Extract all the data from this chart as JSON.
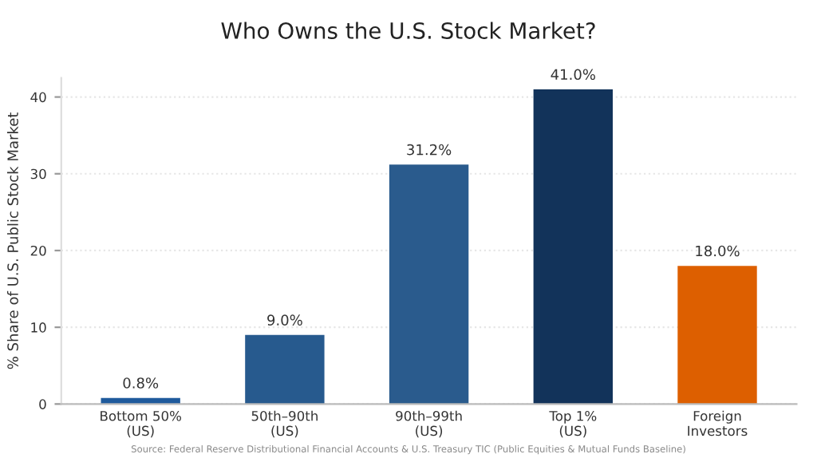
{
  "chart_data": {
    "type": "bar",
    "title": "Who Owns the U.S. Stock Market?",
    "ylabel": "% Share of U.S. Public Stock Market",
    "categories": [
      "Bottom 50%\n(US)",
      "50th–90th\n(US)",
      "90th–99th\n(US)",
      "Top 1%\n(US)",
      "Foreign\nInvestors"
    ],
    "values": [
      0.8,
      9.0,
      31.2,
      41.0,
      18.0
    ],
    "colors": [
      "#1f5a9c",
      "#275a8e",
      "#2a5b8d",
      "#12335a",
      "#dd5f00"
    ],
    "value_labels": [
      "0.8%",
      "9.0%",
      "31.2%",
      "41.0%",
      "18.0%"
    ],
    "ylim": [
      0,
      42.5
    ],
    "yticks": [
      0,
      10,
      20,
      30,
      40
    ],
    "grid": "y",
    "legend": false,
    "annotations": [
      "Source: Federal Reserve Distributional Financial Accounts & U.S. Treasury TIC (Public Equities & Mutual Funds Baseline)"
    ]
  }
}
